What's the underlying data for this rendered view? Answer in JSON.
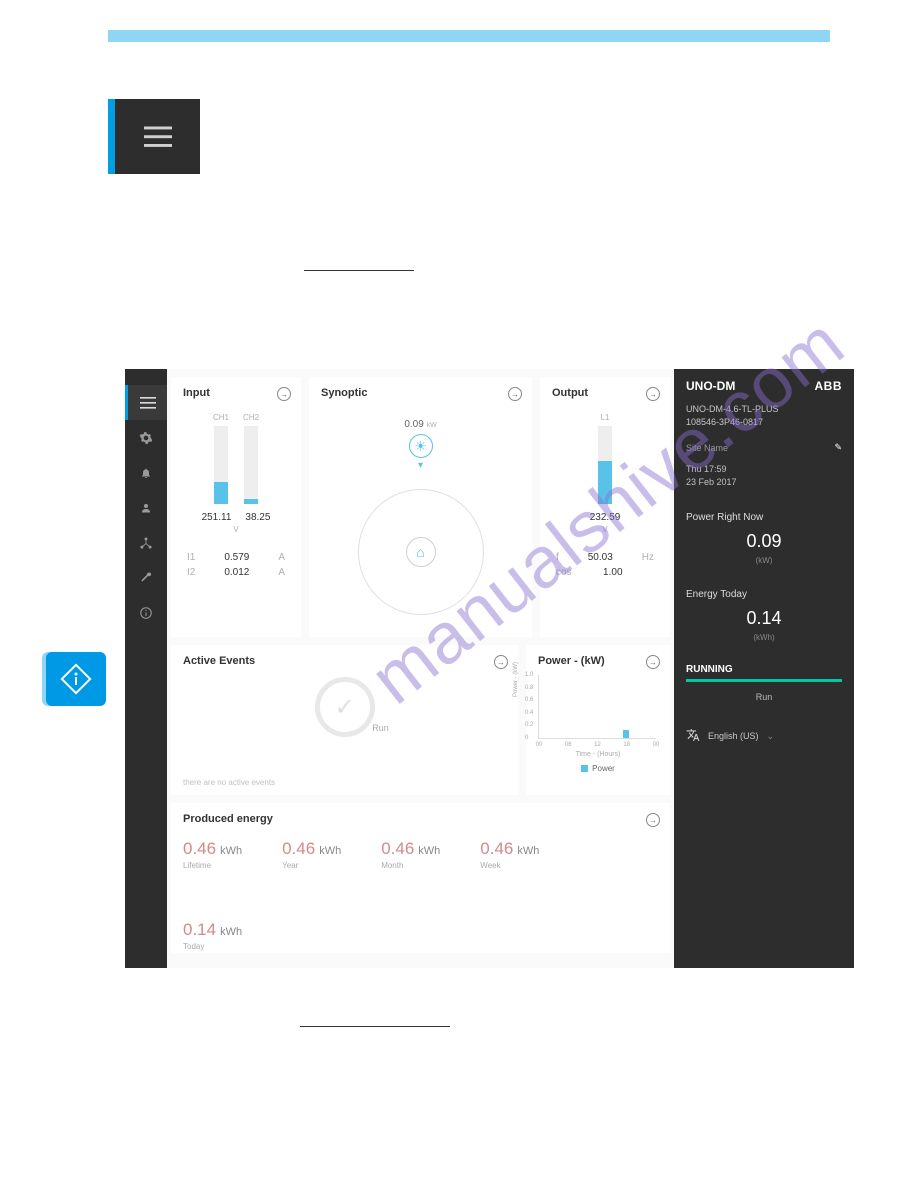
{
  "colors": {
    "accent": "#8fd5f4",
    "dark": "#2d2d2d",
    "blue": "#009fe3",
    "bar_blue": "#59c2e8",
    "status_green": "#00c8a0",
    "prod_red": "#d38a8a"
  },
  "dashboard": {
    "input": {
      "title": "Input",
      "ch1_label": "CH1",
      "ch2_label": "CH2",
      "ch1_bar_pct": 28,
      "ch2_bar_pct": 6,
      "ch1_voltage": "251.11",
      "ch2_voltage": "38.25",
      "voltage_unit": "V",
      "rows": [
        {
          "label": "I1",
          "value": "0.579",
          "unit": "A"
        },
        {
          "label": "I2",
          "value": "0.012",
          "unit": "A"
        }
      ]
    },
    "synoptic": {
      "title": "Synoptic",
      "power_value": "0.09",
      "power_unit": "kW"
    },
    "output": {
      "title": "Output",
      "l1_label": "L1",
      "l1_bar_pct": 55,
      "l1_voltage": "232.59",
      "voltage_unit": "V",
      "rows": [
        {
          "label": "f",
          "value": "50.03",
          "unit": "Hz"
        },
        {
          "label": "cos",
          "value": "1.00",
          "unit": ""
        }
      ]
    },
    "events": {
      "title": "Active Events",
      "status_word": "Run",
      "none_text": "there are no active events"
    },
    "power_chart": {
      "title": "Power - (kW)",
      "type": "bar",
      "ylim": [
        0,
        1.0
      ],
      "yticks": [
        "0",
        "0.2",
        "0.4",
        "0.6",
        "0.8",
        "1.0"
      ],
      "xticks": [
        "00",
        "06",
        "12",
        "18",
        "00"
      ],
      "ylabel": "Power - (kW)",
      "xlabel": "Time - (Hours)",
      "bars": [
        {
          "x_pct": 72,
          "h_pct": 12
        }
      ],
      "bar_color": "#59c2e8",
      "legend_label": "Power"
    },
    "produced": {
      "title": "Produced energy",
      "items": [
        {
          "value": "0.46",
          "unit": "kWh",
          "period": "Lifetime"
        },
        {
          "value": "0.46",
          "unit": "kWh",
          "period": "Year"
        },
        {
          "value": "0.46",
          "unit": "kWh",
          "period": "Month"
        },
        {
          "value": "0.46",
          "unit": "kWh",
          "period": "Week"
        },
        {
          "value": "0.14",
          "unit": "kWh",
          "period": "Today"
        }
      ]
    }
  },
  "sidebar": {
    "product": "UNO-DM",
    "brand": "ABB",
    "model_line1": "UNO-DM-4.6-TL-PLUS",
    "model_line2": "108546-3P46-0817",
    "site_name_label": "Site Name",
    "time": "Thu 17:59",
    "date": "23 Feb 2017",
    "power_now_label": "Power Right Now",
    "power_now_value": "0.09",
    "power_now_unit": "(kW)",
    "energy_today_label": "Energy Today",
    "energy_today_value": "0.14",
    "energy_today_unit": "(kWh)",
    "status_label": "RUNNING",
    "status_value": "Run",
    "language": "English (US)"
  },
  "watermark_text": "manualshive.com"
}
